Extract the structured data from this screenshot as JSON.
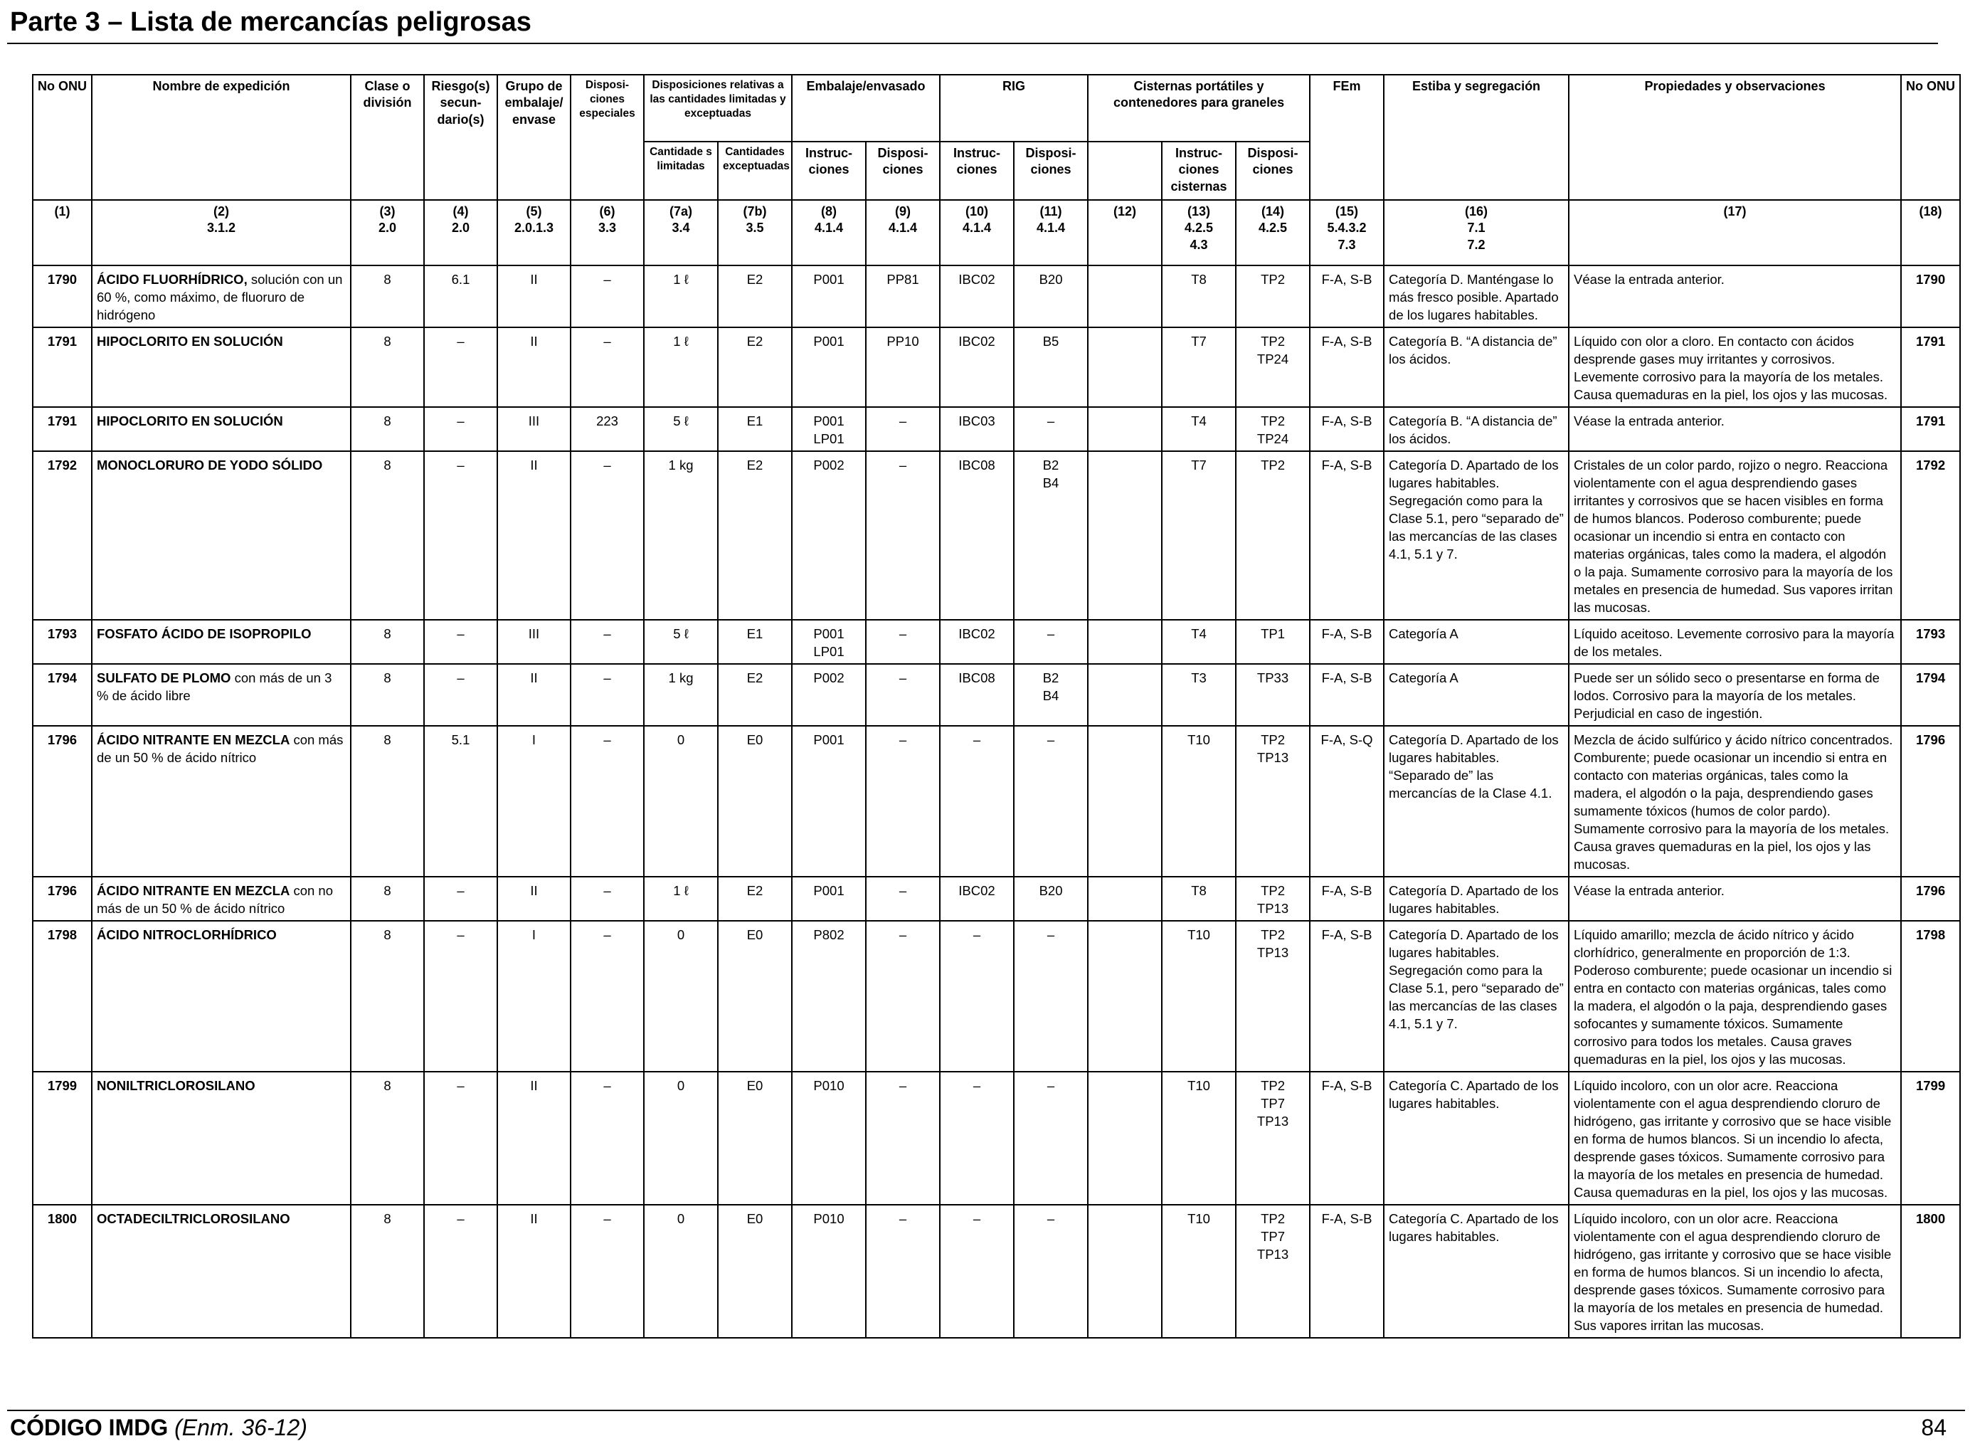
{
  "header": {
    "title": "Parte 3 – Lista de mercancías peligrosas"
  },
  "footer": {
    "code_bold": "CÓDIGO IMDG",
    "code_italic": "(Enm. 36-12)",
    "page": "84"
  },
  "table": {
    "headers": {
      "no_onu": "No ONU",
      "nombre": "Nombre de expedición",
      "clase": "Clase o división",
      "riesgo": "Riesgo(s) secun- dario(s)",
      "grupo": "Grupo de embalaje/ envase",
      "disp_esp": "Disposi- ciones especiales",
      "disp_rel": "Disposiciones relativas a las cantidades limitadas y exceptuadas",
      "embalaje": "Embalaje/envasado",
      "rig": "RIG",
      "cisternas": "Cisternas portátiles y contenedores para graneles",
      "fem": "FEm",
      "estiba": "Estiba y segregación",
      "propiedades": "Propiedades y observaciones",
      "no_onu_r": "No ONU",
      "cant_lim": "Cantidade s limitadas",
      "cant_exc": "Cantidades exceptuadas",
      "emb_instr": "Instruc- ciones",
      "emb_disp": "Disposi- ciones",
      "rig_instr": "Instruc- ciones",
      "rig_disp": "Disposi- ciones",
      "cis_instr": "Instruc- ciones cisternas",
      "cis_disp": "Disposi- ciones"
    },
    "refs": [
      {
        "n": "(1)",
        "s": ""
      },
      {
        "n": "(2)",
        "s": "3.1.2"
      },
      {
        "n": "(3)",
        "s": "2.0"
      },
      {
        "n": "(4)",
        "s": "2.0"
      },
      {
        "n": "(5)",
        "s": "2.0.1.3"
      },
      {
        "n": "(6)",
        "s": "3.3"
      },
      {
        "n": "(7a)",
        "s": "3.4"
      },
      {
        "n": "(7b)",
        "s": "3.5"
      },
      {
        "n": "(8)",
        "s": "4.1.4"
      },
      {
        "n": "(9)",
        "s": "4.1.4"
      },
      {
        "n": "(10)",
        "s": "4.1.4"
      },
      {
        "n": "(11)",
        "s": "4.1.4"
      },
      {
        "n": "(12)",
        "s": ""
      },
      {
        "n": "(13)",
        "s": "4.2.5\n4.3"
      },
      {
        "n": "(14)",
        "s": "4.2.5"
      },
      {
        "n": "(15)",
        "s": "5.4.3.2\n7.3"
      },
      {
        "n": "(16)",
        "s": "7.1\n7.2"
      },
      {
        "n": "(17)",
        "s": ""
      },
      {
        "n": "(18)",
        "s": ""
      }
    ],
    "rows": [
      {
        "un": "1790",
        "name_b": "ÁCIDO FLUORHÍDRICO,",
        "name_r": " solución con un 60 %, como máximo, de fluoruro de hidrógeno",
        "cls": "8",
        "sub": "6.1",
        "pg": "II",
        "sp": "–",
        "lq": "1 ℓ",
        "eq": "E2",
        "pi": "P001",
        "pp": "PP81",
        "ibc": "IBC02",
        "ibcp": "B20",
        "c12": "",
        "tank": "T8",
        "tp": "TP2",
        "ems": "F-A, S-B",
        "stow": "Categoría D. Manténgase lo más fresco posible. Apartado de los lugares habitables.",
        "props": "Véase la entrada anterior.",
        "un2": "1790"
      },
      {
        "un": "1791",
        "name_b": "HIPOCLORITO EN SOLUCIÓN",
        "name_r": "",
        "cls": "8",
        "sub": "–",
        "pg": "II",
        "sp": "–",
        "lq": "1 ℓ",
        "eq": "E2",
        "pi": "P001",
        "pp": "PP10",
        "ibc": "IBC02",
        "ibcp": "B5",
        "c12": "",
        "tank": "T7",
        "tp": "TP2\nTP24",
        "ems": "F-A, S-B",
        "stow": "Categoría B. “A distancia de” los ácidos.",
        "props": "Líquido con olor a cloro. En contacto con ácidos desprende gases muy irritantes y corrosivos. Levemente corrosivo para la mayoría de los metales. Causa quemaduras en la piel, los ojos y las mucosas.",
        "un2": "1791"
      },
      {
        "un": "1791",
        "name_b": "HIPOCLORITO EN SOLUCIÓN",
        "name_r": "",
        "cls": "8",
        "sub": "–",
        "pg": "III",
        "sp": "223",
        "lq": "5 ℓ",
        "eq": "E1",
        "pi": "P001\nLP01",
        "pp": "–",
        "ibc": "IBC03",
        "ibcp": "–",
        "c12": "",
        "tank": "T4",
        "tp": "TP2\nTP24",
        "ems": "F-A, S-B",
        "stow": "Categoría B. “A distancia de” los ácidos.",
        "props": "Véase la entrada anterior.",
        "un2": "1791"
      },
      {
        "un": "1792",
        "name_b": "MONOCLORURO DE YODO SÓLIDO",
        "name_r": "",
        "cls": "8",
        "sub": "–",
        "pg": "II",
        "sp": "–",
        "lq": "1 kg",
        "eq": "E2",
        "pi": "P002",
        "pp": "–",
        "ibc": "IBC08",
        "ibcp": "B2\nB4",
        "c12": "",
        "tank": "T7",
        "tp": "TP2",
        "ems": "F-A, S-B",
        "stow": "Categoría D. Apartado de los lugares habitables. Segregación como para la Clase 5.1, pero “separado de” las mercancías de las clases 4.1, 5.1 y 7.",
        "props": "Cristales de un color pardo, rojizo o negro. Reacciona violentamente con el agua desprendiendo gases irritantes y corrosivos que se hacen visibles en forma de humos blancos. Poderoso comburente; puede ocasionar un incendio si entra en contacto con materias orgánicas, tales como la madera, el algodón o la paja. Sumamente corrosivo para la mayoría de los metales en presencia de humedad. Sus vapores irritan las mucosas.",
        "un2": "1792"
      },
      {
        "un": "1793",
        "name_b": "FOSFATO ÁCIDO DE ISOPROPILO",
        "name_r": "",
        "cls": "8",
        "sub": "–",
        "pg": "III",
        "sp": "–",
        "lq": "5 ℓ",
        "eq": "E1",
        "pi": "P001\nLP01",
        "pp": "–",
        "ibc": "IBC02",
        "ibcp": "–",
        "c12": "",
        "tank": "T4",
        "tp": "TP1",
        "ems": "F-A, S-B",
        "stow": "Categoría A",
        "props": "Líquido aceitoso. Levemente corrosivo para la mayoría de los metales.",
        "un2": "1793"
      },
      {
        "un": "1794",
        "name_b": "SULFATO DE PLOMO",
        "name_r": " con más de un 3 % de ácido libre",
        "cls": "8",
        "sub": "–",
        "pg": "II",
        "sp": "–",
        "lq": "1 kg",
        "eq": "E2",
        "pi": "P002",
        "pp": "–",
        "ibc": "IBC08",
        "ibcp": "B2\nB4",
        "c12": "",
        "tank": "T3",
        "tp": "TP33",
        "ems": "F-A, S-B",
        "stow": "Categoría A",
        "props": "Puede ser un sólido seco o presentarse en forma de lodos. Corrosivo para la mayoría de los metales. Perjudicial en caso de ingestión.",
        "un2": "1794"
      },
      {
        "un": "1796",
        "name_b": "ÁCIDO NITRANTE EN MEZCLA",
        "name_r": " con más de un 50 % de ácido nítrico",
        "cls": "8",
        "sub": "5.1",
        "pg": "I",
        "sp": "–",
        "lq": "0",
        "eq": "E0",
        "pi": "P001",
        "pp": "–",
        "ibc": "–",
        "ibcp": "–",
        "c12": "",
        "tank": "T10",
        "tp": "TP2\nTP13",
        "ems": "F-A, S-Q",
        "stow": "Categoría D. Apartado de los lugares habitables. “Separado de” las mercancías de la Clase 4.1.",
        "props": "Mezcla de ácido sulfúrico y ácido nítrico concentrados. Comburente; puede ocasionar un incendio si entra en contacto con materias orgánicas, tales como la madera, el algodón o la paja, desprendiendo gases sumamente tóxicos (humos de color pardo). Sumamente corrosivo para la mayoría de los metales. Causa graves quemaduras en la piel, los ojos y las mucosas.",
        "un2": "1796"
      },
      {
        "un": "1796",
        "name_b": "ÁCIDO NITRANTE EN MEZCLA",
        "name_r": " con no más de un 50 % de ácido nítrico",
        "cls": "8",
        "sub": "–",
        "pg": "II",
        "sp": "–",
        "lq": "1 ℓ",
        "eq": "E2",
        "pi": "P001",
        "pp": "–",
        "ibc": "IBC02",
        "ibcp": "B20",
        "c12": "",
        "tank": "T8",
        "tp": "TP2\nTP13",
        "ems": "F-A, S-B",
        "stow": "Categoría D. Apartado de los lugares habitables.",
        "props": "Véase la entrada anterior.",
        "un2": "1796"
      },
      {
        "un": "1798",
        "name_b": "ÁCIDO NITROCLORHÍDRICO",
        "name_r": "",
        "cls": "8",
        "sub": "–",
        "pg": "I",
        "sp": "–",
        "lq": "0",
        "eq": "E0",
        "pi": "P802",
        "pp": "–",
        "ibc": "–",
        "ibcp": "–",
        "c12": "",
        "tank": "T10",
        "tp": "TP2\nTP13",
        "ems": "F-A, S-B",
        "stow": "Categoría D. Apartado de los lugares habitables. Segregación como para la Clase 5.1, pero “separado de” las mercancías de las clases 4.1, 5.1 y 7.",
        "props": "Líquido amarillo; mezcla de ácido nítrico y ácido clorhídrico, generalmente en proporción de 1:3. Poderoso comburente; puede ocasionar un incendio si entra en contacto con materias orgánicas, tales como la madera, el algodón o la paja, desprendiendo gases sofocantes y sumamente tóxicos. Sumamente corrosivo para todos los metales. Causa graves quemaduras en la piel, los ojos y las mucosas.",
        "un2": "1798"
      },
      {
        "un": "1799",
        "name_b": "NONILTRICLOROSILANO",
        "name_r": "",
        "cls": "8",
        "sub": "–",
        "pg": "II",
        "sp": "–",
        "lq": "0",
        "eq": "E0",
        "pi": "P010",
        "pp": "–",
        "ibc": "–",
        "ibcp": "–",
        "c12": "",
        "tank": "T10",
        "tp": "TP2\nTP7\nTP13",
        "ems": "F-A, S-B",
        "stow": "Categoría C. Apartado de los lugares habitables.",
        "props": "Líquido incoloro, con un olor acre. Reacciona violentamente con el agua desprendiendo cloruro de hidrógeno, gas irritante y corrosivo que se hace visible en forma de humos blancos. Si un incendio lo afecta, desprende gases tóxicos. Sumamente corrosivo para la mayoría de los metales en presencia de humedad. Causa quemaduras en la piel, los ojos y las mucosas.",
        "un2": "1799"
      },
      {
        "un": "1800",
        "name_b": "OCTADECILTRICLOROSILANO",
        "name_r": "",
        "cls": "8",
        "sub": "–",
        "pg": "II",
        "sp": "–",
        "lq": "0",
        "eq": "E0",
        "pi": "P010",
        "pp": "–",
        "ibc": "–",
        "ibcp": "–",
        "c12": "",
        "tank": "T10",
        "tp": "TP2\nTP7\nTP13",
        "ems": "F-A, S-B",
        "stow": "Categoría C. Apartado de los lugares habitables.",
        "props": "Líquido incoloro, con un olor acre. Reacciona violentamente con el agua desprendiendo cloruro de hidrógeno, gas irritante y corrosivo que se hace visible en forma de humos blancos. Si un incendio lo afecta, desprende gases tóxicos. Sumamente corrosivo para la mayoría de los metales en presencia de humedad. Sus vapores irritan las mucosas.",
        "un2": "1800"
      }
    ]
  }
}
